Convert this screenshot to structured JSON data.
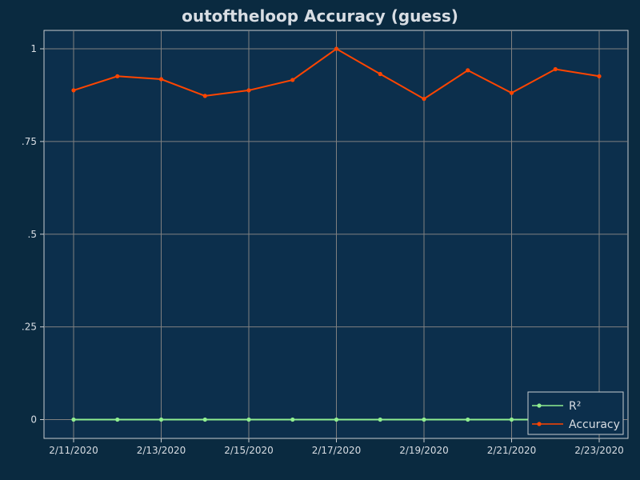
{
  "chart_data": {
    "type": "line",
    "title": "outoftheloop Accuracy (guess)",
    "xlabel": "",
    "ylabel": "",
    "x": [
      "2/11/2020",
      "2/12/2020",
      "2/13/2020",
      "2/14/2020",
      "2/15/2020",
      "2/16/2020",
      "2/17/2020",
      "2/18/2020",
      "2/19/2020",
      "2/20/2020",
      "2/21/2020",
      "2/22/2020",
      "2/23/2020"
    ],
    "x_tick_labels": [
      "2/11/2020",
      "2/13/2020",
      "2/15/2020",
      "2/17/2020",
      "2/19/2020",
      "2/21/2020",
      "2/23/2020"
    ],
    "y_tick_labels": [
      "0",
      ".25",
      ".5",
      ".75",
      "1"
    ],
    "y_ticks": [
      0,
      0.25,
      0.5,
      0.75,
      1
    ],
    "ylim": [
      -0.05,
      1.05
    ],
    "grid": true,
    "legend_position": "bottom-right",
    "series": [
      {
        "name": "R²",
        "color": "#90ee90",
        "values": [
          0,
          0,
          0,
          0,
          0,
          0,
          0,
          0,
          0,
          0,
          0,
          0,
          0
        ]
      },
      {
        "name": "Accuracy",
        "color": "#ff4500",
        "values": [
          0.888,
          0.926,
          0.918,
          0.873,
          0.888,
          0.916,
          1.0,
          0.932,
          0.865,
          0.942,
          0.881,
          0.945,
          0.926
        ]
      }
    ],
    "colors": {
      "background": "#0a2a40",
      "plot_background": "#0c2f4c",
      "grid": "#808080",
      "text": "#d8dde3"
    }
  }
}
